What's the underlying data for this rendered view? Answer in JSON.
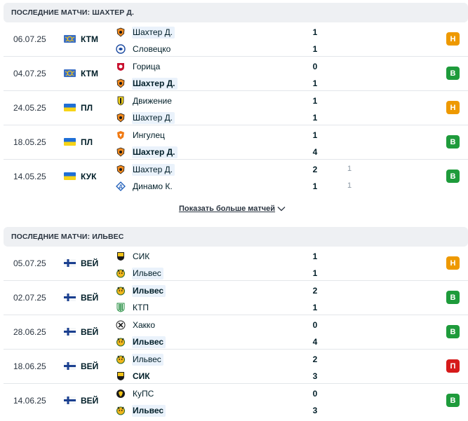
{
  "colors": {
    "draw": "#ee9900",
    "win": "#1e9b3b",
    "loss": "#d61a1a",
    "header_bg": "#eef0f3",
    "highlight": "#eaf2fb"
  },
  "section1": {
    "title": "ПОСЛЕДНИЕ МАТЧИ: ШАХТЕР Д.",
    "more_label": "Показать больше матчей",
    "matches": [
      {
        "date": "06.07.25",
        "flag": "world-flag",
        "league": "КТМ",
        "home": {
          "name": "Шахтер Д.",
          "logo": "shakhtar-logo",
          "highlight": true,
          "bold": false
        },
        "away": {
          "name": "Словецко",
          "logo": "slovacko-logo",
          "highlight": false,
          "bold": false
        },
        "score_home": "1",
        "score_away": "1",
        "result": "Н",
        "result_type": "draw"
      },
      {
        "date": "04.07.25",
        "flag": "world-flag",
        "league": "КТМ",
        "home": {
          "name": "Горица",
          "logo": "gorica-logo",
          "highlight": false,
          "bold": false
        },
        "away": {
          "name": "Шахтер Д.",
          "logo": "shakhtar-logo",
          "highlight": true,
          "bold": true
        },
        "score_home": "0",
        "score_away": "1",
        "result": "В",
        "result_type": "win"
      },
      {
        "date": "24.05.25",
        "flag": "ukraine-flag",
        "league": "ПЛ",
        "home": {
          "name": "Движение",
          "logo": "rukh-logo",
          "highlight": false,
          "bold": false
        },
        "away": {
          "name": "Шахтер Д.",
          "logo": "shakhtar-logo",
          "highlight": true,
          "bold": false
        },
        "score_home": "1",
        "score_away": "1",
        "result": "Н",
        "result_type": "draw"
      },
      {
        "date": "18.05.25",
        "flag": "ukraine-flag",
        "league": "ПЛ",
        "home": {
          "name": "Ингулец",
          "logo": "inhulets-logo",
          "highlight": false,
          "bold": false
        },
        "away": {
          "name": "Шахтер Д.",
          "logo": "shakhtar-logo",
          "highlight": true,
          "bold": true
        },
        "score_home": "1",
        "score_away": "4",
        "result": "В",
        "result_type": "win"
      },
      {
        "date": "14.05.25",
        "flag": "ukraine-flag",
        "league": "КУК",
        "home": {
          "name": "Шахтер Д.",
          "logo": "shakhtar-logo",
          "highlight": true,
          "bold": false
        },
        "away": {
          "name": "Динамо К.",
          "logo": "dynamo-logo",
          "highlight": false,
          "bold": false
        },
        "score_home": "2",
        "score_away": "1",
        "pen_home": "1",
        "pen_away": "1",
        "result": "В",
        "result_type": "win"
      }
    ]
  },
  "section2": {
    "title": "ПОСЛЕДНИЕ МАТЧИ: ИЛЬВЕС",
    "matches": [
      {
        "date": "05.07.25",
        "flag": "finland-flag",
        "league": "ВЕЙ",
        "home": {
          "name": "СИК",
          "logo": "sjk-logo",
          "highlight": false,
          "bold": false
        },
        "away": {
          "name": "Ильвес",
          "logo": "ilves-logo",
          "highlight": true,
          "bold": false
        },
        "score_home": "1",
        "score_away": "1",
        "result": "Н",
        "result_type": "draw"
      },
      {
        "date": "02.07.25",
        "flag": "finland-flag",
        "league": "ВЕЙ",
        "home": {
          "name": "Ильвес",
          "logo": "ilves-logo",
          "highlight": true,
          "bold": true
        },
        "away": {
          "name": "КТП",
          "logo": "ktp-logo",
          "highlight": false,
          "bold": false
        },
        "score_home": "2",
        "score_away": "1",
        "result": "В",
        "result_type": "win"
      },
      {
        "date": "28.06.25",
        "flag": "finland-flag",
        "league": "ВЕЙ",
        "home": {
          "name": "Хакко",
          "logo": "haka-logo",
          "highlight": false,
          "bold": false
        },
        "away": {
          "name": "Ильвес",
          "logo": "ilves-logo",
          "highlight": true,
          "bold": true
        },
        "score_home": "0",
        "score_away": "4",
        "result": "В",
        "result_type": "win"
      },
      {
        "date": "18.06.25",
        "flag": "finland-flag",
        "league": "ВЕЙ",
        "home": {
          "name": "Ильвес",
          "logo": "ilves-logo",
          "highlight": true,
          "bold": false
        },
        "away": {
          "name": "СИК",
          "logo": "sjk-logo",
          "highlight": false,
          "bold": true
        },
        "score_home": "2",
        "score_away": "3",
        "result": "П",
        "result_type": "loss"
      },
      {
        "date": "14.06.25",
        "flag": "finland-flag",
        "league": "ВЕЙ",
        "home": {
          "name": "КуПС",
          "logo": "kups-logo",
          "highlight": false,
          "bold": false
        },
        "away": {
          "name": "Ильвес",
          "logo": "ilves-logo",
          "highlight": true,
          "bold": true
        },
        "score_home": "0",
        "score_away": "3",
        "result": "В",
        "result_type": "win"
      }
    ]
  }
}
